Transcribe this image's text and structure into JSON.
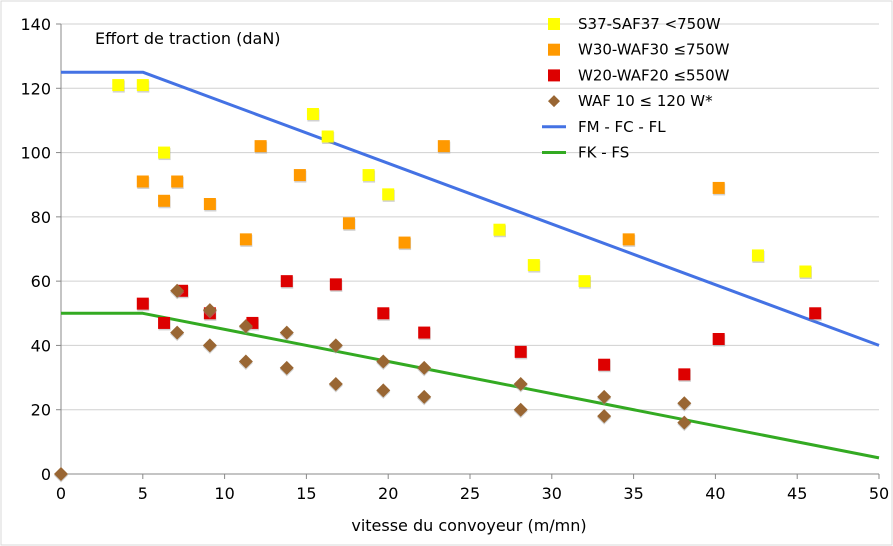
{
  "chart_data": {
    "type": "scatter",
    "title": "Effort de traction (daN)",
    "xlabel": "vitesse du convoyeur (m/mn)",
    "ylabel": "",
    "xlim": [
      0,
      50
    ],
    "ylim": [
      0,
      140
    ],
    "x_ticks": [
      0,
      5,
      10,
      15,
      20,
      25,
      30,
      35,
      40,
      45,
      50
    ],
    "y_ticks": [
      0,
      20,
      40,
      60,
      80,
      100,
      120,
      140
    ],
    "grid": "horizontal",
    "legend_position": "top-right",
    "series": [
      {
        "name": "S37-SAF37 <750W",
        "marker": "square",
        "color": "#ffff00",
        "points": [
          [
            3.5,
            121
          ],
          [
            5,
            121
          ],
          [
            6.3,
            100
          ],
          [
            15.4,
            112
          ],
          [
            16.3,
            105
          ],
          [
            18.8,
            93
          ],
          [
            20,
            87
          ],
          [
            26.8,
            76
          ],
          [
            28.9,
            65
          ],
          [
            32,
            60
          ],
          [
            42.6,
            68
          ],
          [
            45.5,
            63
          ]
        ]
      },
      {
        "name": "W30-WAF30 ≤750W",
        "marker": "square",
        "color": "#ff9900",
        "points": [
          [
            5,
            91
          ],
          [
            6.3,
            85
          ],
          [
            7.1,
            91
          ],
          [
            9.1,
            84
          ],
          [
            11.3,
            73
          ],
          [
            12.2,
            102
          ],
          [
            14.6,
            93
          ],
          [
            17.6,
            78
          ],
          [
            21,
            72
          ],
          [
            23.4,
            102
          ],
          [
            34.7,
            73
          ],
          [
            40.2,
            89
          ]
        ]
      },
      {
        "name": "W20-WAF20 ≤550W",
        "marker": "square",
        "color": "#dd0000",
        "points": [
          [
            5,
            53
          ],
          [
            6.3,
            47
          ],
          [
            7.4,
            57
          ],
          [
            9.1,
            50
          ],
          [
            11.7,
            47
          ],
          [
            13.8,
            60
          ],
          [
            16.8,
            59
          ],
          [
            19.7,
            50
          ],
          [
            22.2,
            44
          ],
          [
            28.1,
            38
          ],
          [
            33.2,
            34
          ],
          [
            38.1,
            31
          ],
          [
            40.2,
            42
          ],
          [
            46.1,
            50
          ]
        ]
      },
      {
        "name": "WAF 10 ≤ 120 W*",
        "marker": "diamond",
        "color": "#996633",
        "points": [
          [
            0,
            0
          ],
          [
            7.1,
            57
          ],
          [
            7.1,
            44
          ],
          [
            9.1,
            51
          ],
          [
            9.1,
            40
          ],
          [
            11.3,
            46
          ],
          [
            11.3,
            35
          ],
          [
            13.8,
            44
          ],
          [
            13.8,
            33
          ],
          [
            16.8,
            40
          ],
          [
            16.8,
            28
          ],
          [
            19.7,
            35
          ],
          [
            19.7,
            26
          ],
          [
            22.2,
            33
          ],
          [
            22.2,
            24
          ],
          [
            28.1,
            28
          ],
          [
            28.1,
            20
          ],
          [
            33.2,
            24
          ],
          [
            33.2,
            18
          ],
          [
            38.1,
            22
          ],
          [
            38.1,
            16
          ]
        ]
      },
      {
        "name": "FM - FC - FL",
        "marker": "line",
        "color": "#4472e4",
        "points": [
          [
            0,
            125
          ],
          [
            5,
            125
          ],
          [
            50,
            40
          ]
        ]
      },
      {
        "name": "FK - FS",
        "marker": "line",
        "color": "#33aa22",
        "points": [
          [
            0,
            50
          ],
          [
            5,
            50
          ],
          [
            50,
            5
          ]
        ]
      }
    ]
  }
}
